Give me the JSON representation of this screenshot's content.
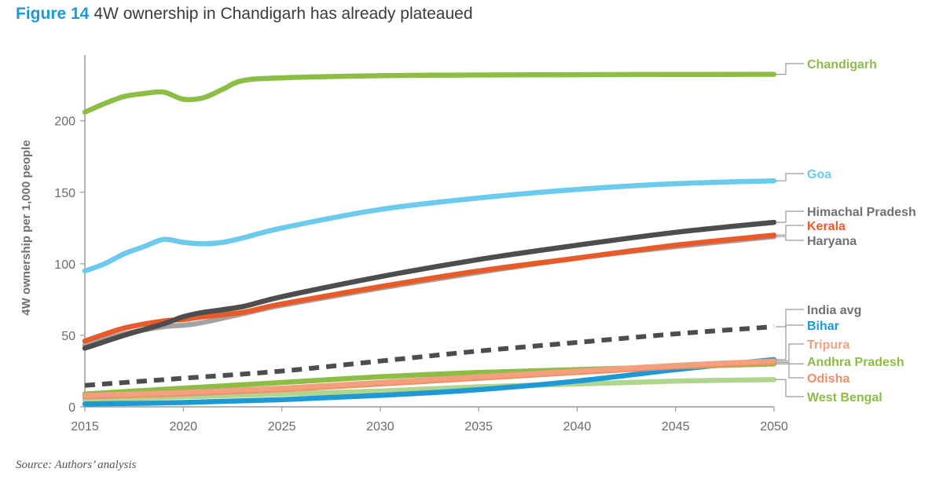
{
  "figure": {
    "number": "Figure 14",
    "title": "4W ownership in Chandigarh has already plateaued",
    "source": "Source: Authors’ analysis"
  },
  "chart_data": {
    "type": "line",
    "title": "4W ownership in Chandigarh has already plateaued",
    "xlabel": "",
    "ylabel": "4W ownership per 1,000 people",
    "xlim": [
      2015,
      2050
    ],
    "ylim": [
      0,
      235
    ],
    "xticks": [
      2015,
      2020,
      2025,
      2030,
      2035,
      2040,
      2045,
      2050
    ],
    "yticks": [
      0,
      50,
      100,
      150,
      200
    ],
    "grid": false,
    "legend": "direct labels at right end of lines",
    "series": [
      {
        "name": "Chandigarh",
        "color": "#8cbd45",
        "dashed": false,
        "x": [
          2015,
          2016,
          2017,
          2018,
          2019,
          2020,
          2021,
          2022,
          2023,
          2025,
          2030,
          2035,
          2040,
          2050
        ],
        "y": [
          206,
          212,
          217,
          219,
          220,
          215,
          216,
          222,
          228,
          230,
          231.5,
          232,
          232.2,
          232.5
        ]
      },
      {
        "name": "Goa",
        "color": "#6ccaec",
        "dashed": false,
        "x": [
          2015,
          2016,
          2017,
          2018,
          2019,
          2020,
          2021,
          2022,
          2023,
          2025,
          2030,
          2035,
          2040,
          2045,
          2050
        ],
        "y": [
          95,
          100,
          107,
          112,
          117,
          115,
          114,
          115,
          118,
          125,
          138,
          146,
          152,
          156,
          158
        ]
      },
      {
        "name": "Himachal Pradesh",
        "color": "#4d4d4d",
        "dashed": false,
        "x": [
          2015,
          2017,
          2019,
          2020,
          2021,
          2023,
          2025,
          2030,
          2035,
          2040,
          2045,
          2050
        ],
        "y": [
          41,
          50,
          58,
          63,
          66,
          70,
          77,
          91,
          103,
          113,
          122,
          129
        ]
      },
      {
        "name": "Kerala",
        "color": "#e85a28",
        "dashed": false,
        "x": [
          2015,
          2017,
          2019,
          2020,
          2021,
          2023,
          2025,
          2030,
          2035,
          2040,
          2045,
          2050
        ],
        "y": [
          46,
          55,
          60,
          61,
          63,
          66,
          72,
          84,
          95,
          104,
          113,
          120
        ]
      },
      {
        "name": "Haryana",
        "color": "#a3a3a3",
        "dashed": false,
        "x": [
          2015,
          2017,
          2019,
          2020,
          2021,
          2023,
          2025,
          2030,
          2035,
          2040,
          2045,
          2050
        ],
        "y": [
          43,
          51,
          56,
          57,
          59,
          65,
          71,
          83,
          94,
          104,
          112,
          119
        ]
      },
      {
        "name": "India avg",
        "color": "#4d4d4d",
        "dashed": true,
        "x": [
          2015,
          2020,
          2025,
          2030,
          2035,
          2040,
          2045,
          2050
        ],
        "y": [
          15,
          20,
          25,
          32,
          39,
          45,
          51,
          56
        ]
      },
      {
        "name": "Bihar",
        "color": "#1d9ad6",
        "dashed": false,
        "x": [
          2015,
          2020,
          2025,
          2030,
          2035,
          2040,
          2045,
          2050
        ],
        "y": [
          2,
          3,
          5,
          8,
          12,
          18,
          26,
          33
        ]
      },
      {
        "name": "Tripura",
        "color": "#f4a07e",
        "dashed": false,
        "x": [
          2015,
          2020,
          2025,
          2030,
          2035,
          2040,
          2045,
          2050
        ],
        "y": [
          8,
          10,
          13,
          17,
          21,
          25,
          29,
          32
        ]
      },
      {
        "name": "Andhra Pradesh",
        "color": "#8cbd45",
        "dashed": false,
        "x": [
          2015,
          2020,
          2025,
          2030,
          2035,
          2040,
          2045,
          2050
        ],
        "y": [
          9,
          13,
          17,
          21,
          24,
          26,
          28,
          30
        ]
      },
      {
        "name": "Odisha",
        "color": "#ef8f67",
        "dashed": false,
        "x": [
          2015,
          2020,
          2025,
          2030,
          2035,
          2040,
          2045,
          2050
        ],
        "y": [
          7,
          9,
          12,
          16,
          20,
          24,
          28,
          31
        ]
      },
      {
        "name": "West Bengal",
        "color": "#b0d58c",
        "dashed": false,
        "x": [
          2015,
          2020,
          2025,
          2030,
          2035,
          2040,
          2045,
          2050
        ],
        "y": [
          5,
          7,
          9,
          11,
          14,
          16,
          18,
          19
        ]
      }
    ],
    "labels": [
      {
        "series": "Chandigarh",
        "color": "#8cbd45"
      },
      {
        "series": "Goa",
        "color": "#6ccaec"
      },
      {
        "series": "Himachal Pradesh",
        "color": "#707070"
      },
      {
        "series": "Kerala",
        "color": "#e85a28"
      },
      {
        "series": "Haryana",
        "color": "#707070"
      },
      {
        "series": "India avg",
        "color": "#707070"
      },
      {
        "series": "Bihar",
        "color": "#1d9ad6"
      },
      {
        "series": "Tripura",
        "color": "#f4a07e"
      },
      {
        "series": "Andhra Pradesh",
        "color": "#8cbd45"
      },
      {
        "series": "Odisha",
        "color": "#ef8f67"
      },
      {
        "series": "West Bengal",
        "color": "#8cbd45"
      }
    ]
  }
}
